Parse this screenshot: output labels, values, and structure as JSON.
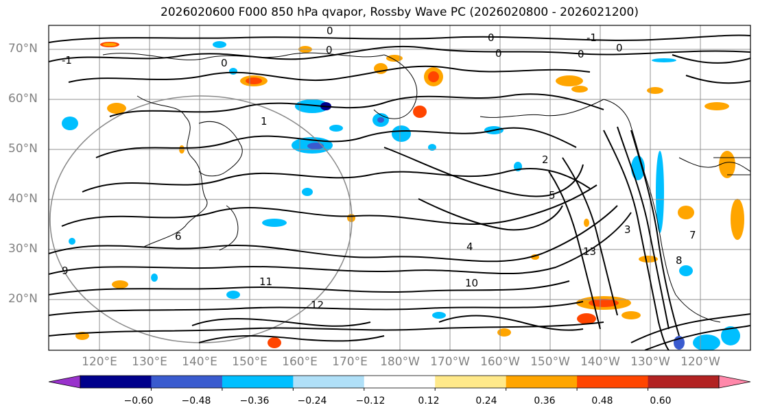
{
  "title": "2026020600 F000 850 hPa qvapor, Rossby Wave PC (2026020800 - 2026021200)",
  "lat_labels": [
    "70°N",
    "60°N",
    "50°N",
    "40°N",
    "30°N",
    "20°N"
  ],
  "lon_labels": [
    "120°E",
    "130°E",
    "140°E",
    "150°E",
    "160°E",
    "170°E",
    "180°W",
    "170°W",
    "160°W",
    "150°W",
    "140°W",
    "130°W",
    "120°W"
  ],
  "colorbar": {
    "ticks": [
      "−0.60",
      "−0.48",
      "−0.36",
      "−0.24",
      "−0.12",
      "0.12",
      "0.24",
      "0.36",
      "0.48",
      "0.60"
    ],
    "colors": [
      "#9932cc",
      "#00008b",
      "#3a5bcf",
      "#00bfff",
      "#b0e0f8",
      "#ffffff",
      "#ffe98a",
      "#ffa500",
      "#ff4500",
      "#b22222",
      "#ff88aa"
    ]
  },
  "contour_labels": [
    "0",
    "0",
    "0",
    "-1",
    "0",
    "0",
    "0",
    "0",
    "-1",
    "1",
    "2",
    "3",
    "4",
    "5",
    "6",
    "7",
    "8",
    "9",
    "10",
    "11",
    "12",
    "13"
  ],
  "colors": {
    "contour": "#000000",
    "coast": "#000000",
    "grid": "#909090",
    "labels": "#808080"
  }
}
